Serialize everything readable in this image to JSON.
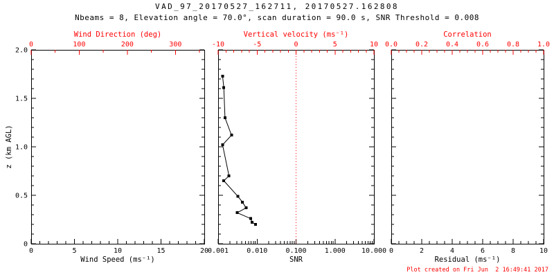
{
  "page": {
    "title": "VAD_97_20170527_162711, 20170527.162808",
    "subtitle": "Nbeams = 8, Elevation angle = 70.0°, scan duration = 90.0 s, SNR Threshold = 0.008",
    "footer": "Plot created on Fri Jun  2 16:49:41 2017"
  },
  "colors": {
    "axis": "#000000",
    "secondary_axis": "#ff0000",
    "data": "#000000",
    "reference_line": "#ff0000",
    "background": "#ffffff"
  },
  "chart_data": [
    {
      "type": "scatter",
      "panel": "wind",
      "note": "no data points plotted in this panel",
      "axes": {
        "bottom": {
          "label": "Wind Speed (ms⁻¹)",
          "lim": [
            0,
            20
          ],
          "ticks": [
            0,
            5,
            10,
            15,
            20
          ],
          "tick_labels": [
            "0",
            "5",
            "10",
            "15",
            "20"
          ],
          "minor_divs": 5
        },
        "top": {
          "label": "Wind Direction (deg)",
          "lim": [
            0,
            360
          ],
          "ticks": [
            0,
            100,
            200,
            300
          ],
          "tick_labels": [
            "0",
            "100",
            "200",
            "300"
          ],
          "minor_divs": 2
        },
        "left": {
          "label": "z (km AGL)",
          "lim": [
            0,
            2
          ],
          "ticks": [
            0,
            0.5,
            1,
            1.5,
            2
          ],
          "tick_labels": [
            "0",
            "0.5",
            "1.0",
            "1.5",
            "2.0"
          ],
          "minor_divs": 5
        }
      },
      "series": []
    },
    {
      "type": "line",
      "panel": "snr",
      "axes": {
        "bottom": {
          "label": "SNR",
          "scale": "log",
          "lim": [
            0.001,
            10
          ],
          "ticks": [
            0.001,
            0.01,
            0.1,
            1,
            10
          ],
          "tick_labels": [
            "0.001",
            "0.010",
            "0.100",
            "1.000",
            "10.000"
          ]
        },
        "top": {
          "label": "Vertical velocity (ms⁻¹)",
          "lim": [
            -10,
            10
          ],
          "ticks": [
            -10,
            -5,
            0,
            5,
            10
          ],
          "tick_labels": [
            "-10",
            "-5",
            "0",
            "5",
            "10"
          ],
          "minor_divs": 5
        },
        "left": {
          "lim": [
            0,
            2
          ],
          "ticks": [
            0,
            0.5,
            1,
            1.5,
            2
          ],
          "minor_divs": 5
        }
      },
      "reference_line": {
        "top_axis_value": 0,
        "style": "dotted"
      },
      "series": [
        {
          "name": "snr-profile",
          "marker": "square",
          "points_format": [
            "snr",
            "z_km"
          ],
          "points": [
            [
              0.0013,
              1.73
            ],
            [
              0.0014,
              1.61
            ],
            [
              0.0015,
              1.3
            ],
            [
              0.0022,
              1.12
            ],
            [
              0.0013,
              1.02
            ],
            [
              0.0019,
              0.7
            ],
            [
              0.0014,
              0.65
            ],
            [
              0.0032,
              0.49
            ],
            [
              0.0042,
              0.43
            ],
            [
              0.0052,
              0.37
            ],
            [
              0.0031,
              0.32
            ],
            [
              0.0068,
              0.26
            ],
            [
              0.0075,
              0.22
            ],
            [
              0.0092,
              0.2
            ]
          ]
        }
      ]
    },
    {
      "type": "scatter",
      "panel": "residual",
      "note": "no data points plotted in this panel",
      "axes": {
        "bottom": {
          "label": "Residual (ms⁻¹)",
          "lim": [
            0,
            10
          ],
          "ticks": [
            0,
            2,
            4,
            6,
            8,
            10
          ],
          "tick_labels": [
            "0",
            "2",
            "4",
            "6",
            "8",
            "10"
          ],
          "minor_divs": 4
        },
        "top": {
          "label": "Correlation",
          "lim": [
            0,
            1
          ],
          "ticks": [
            0,
            0.2,
            0.4,
            0.6,
            0.8,
            1
          ],
          "tick_labels": [
            "0.0",
            "0.2",
            "0.4",
            "0.6",
            "0.8",
            "1.0"
          ],
          "minor_divs": 4
        },
        "left": {
          "lim": [
            0,
            2
          ],
          "ticks": [
            0,
            0.5,
            1,
            1.5,
            2
          ],
          "minor_divs": 5
        }
      },
      "series": []
    }
  ]
}
